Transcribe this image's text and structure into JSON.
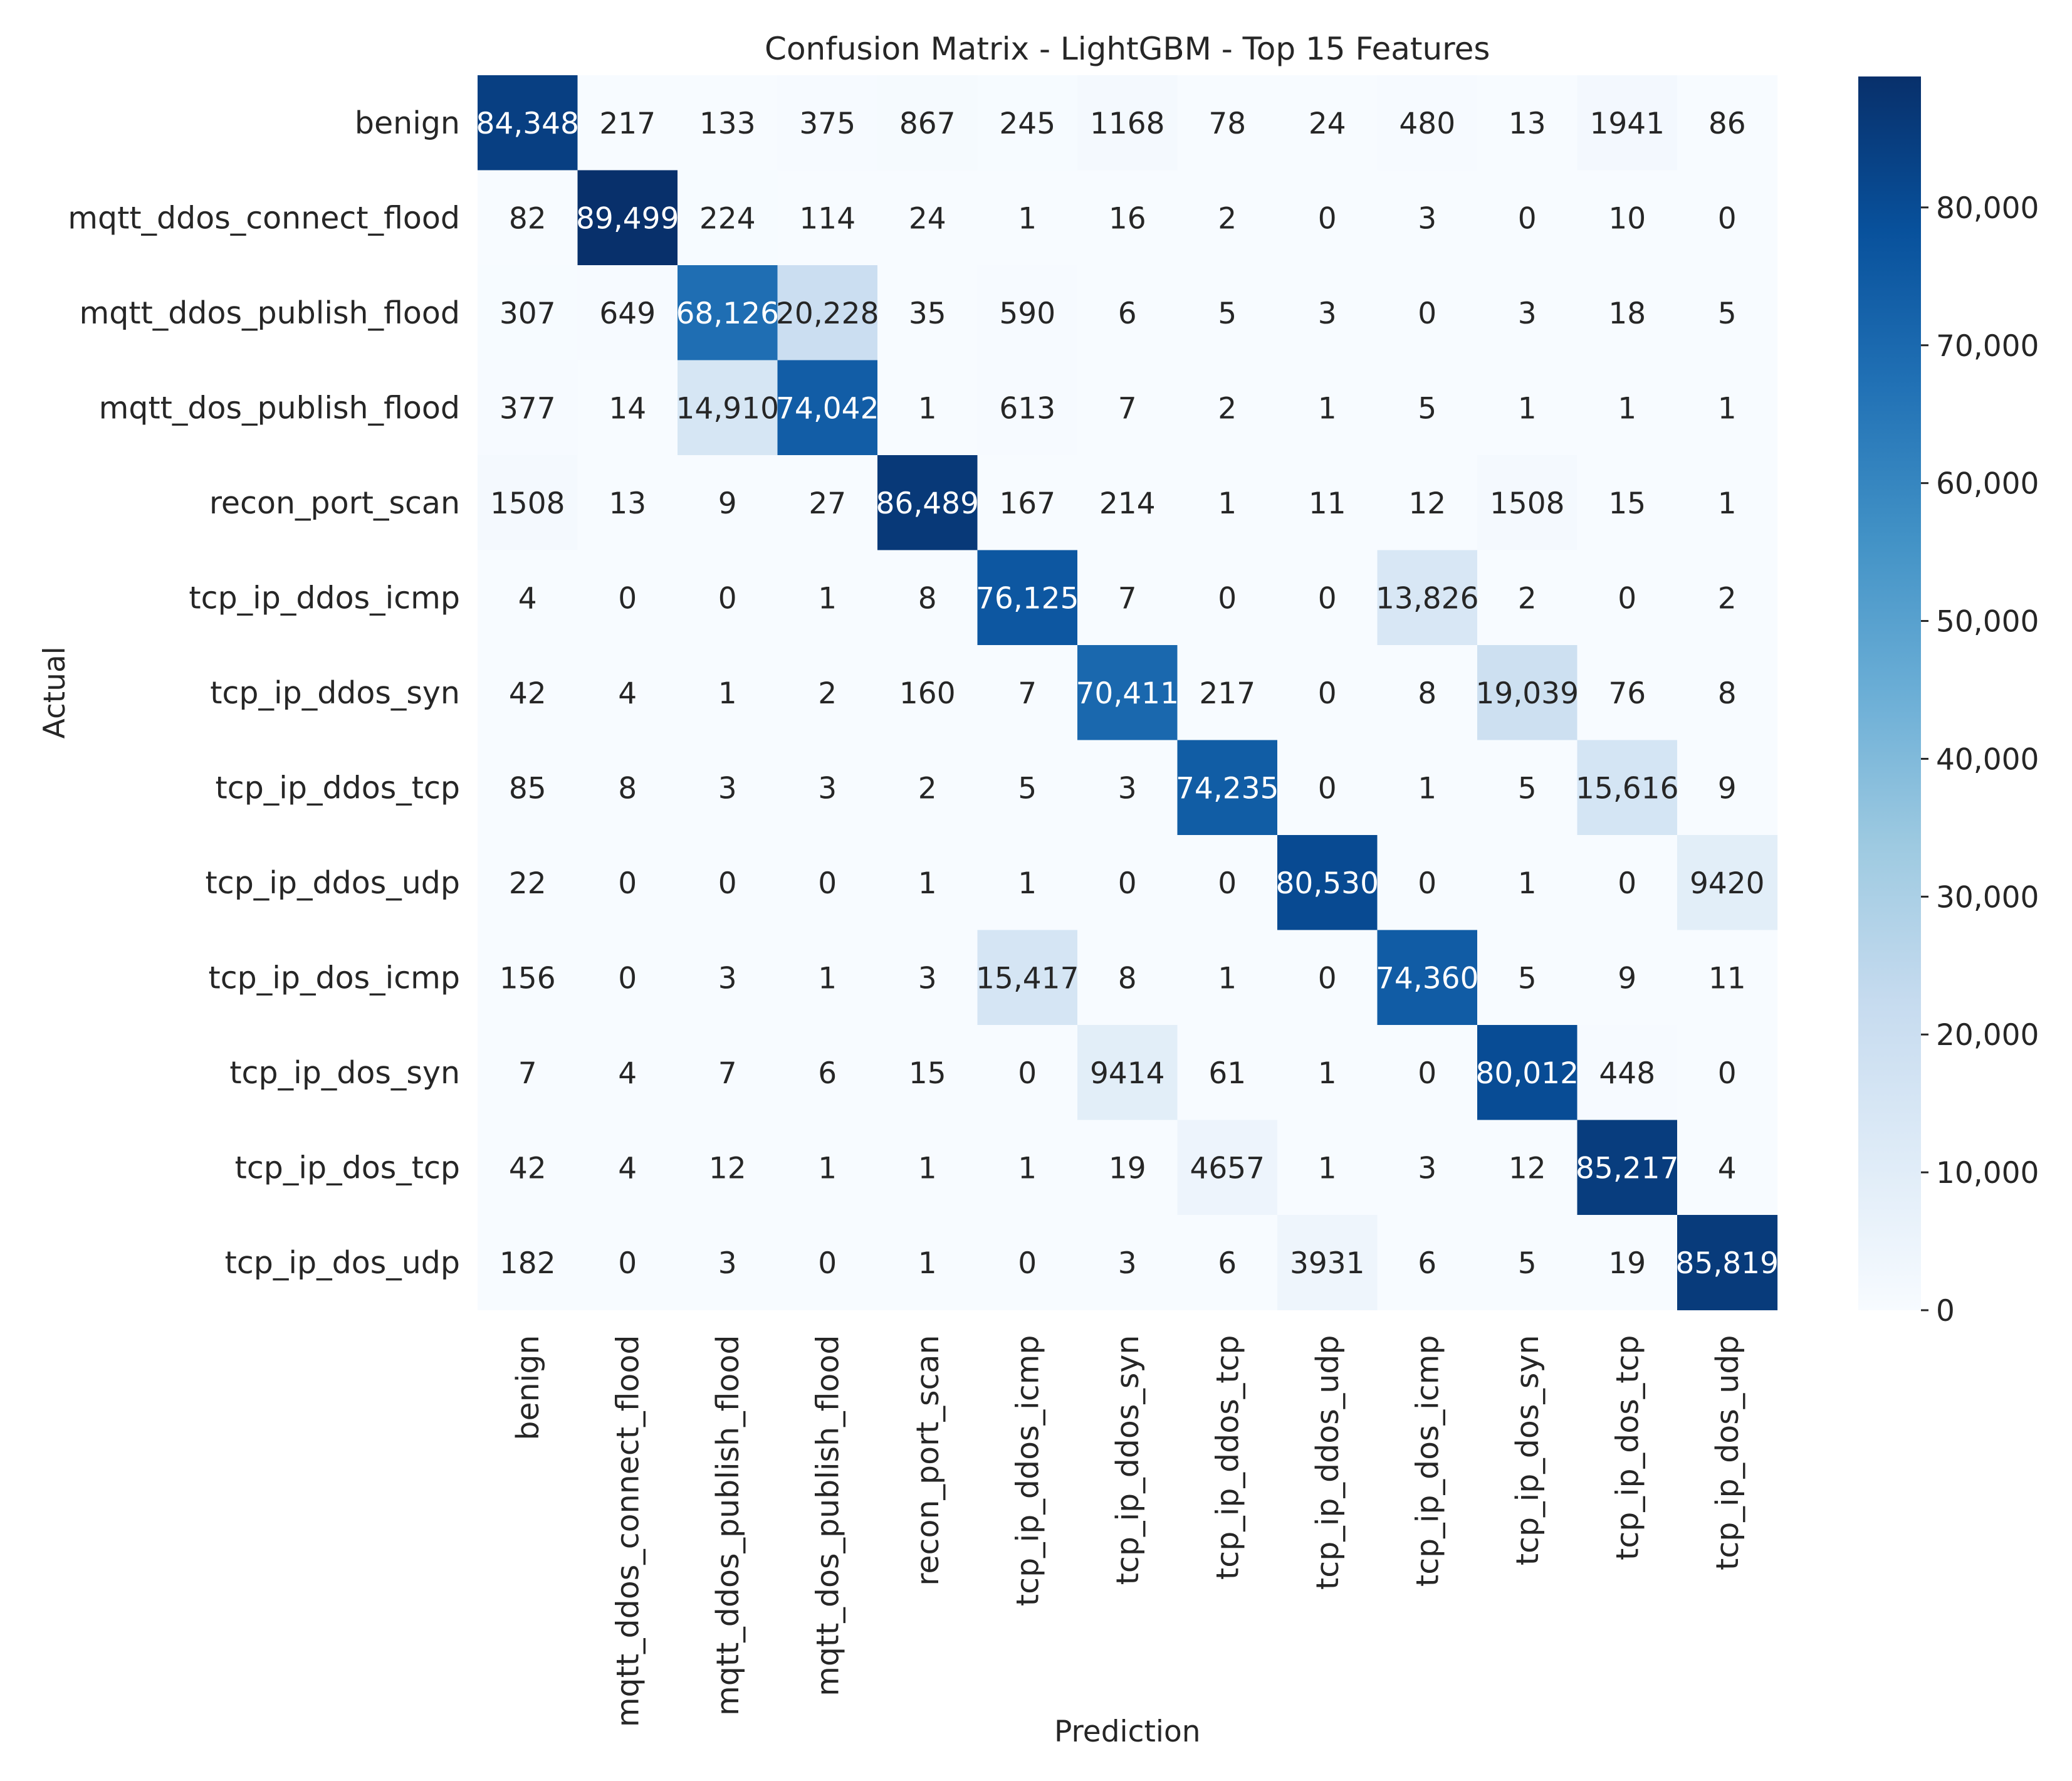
{
  "chart_data": {
    "type": "heatmap",
    "title": "Confusion Matrix - LightGBM - Top 15 Features",
    "xlabel": "Prediction",
    "ylabel": "Actual",
    "row_labels": [
      "benign",
      "mqtt_ddos_connect_flood",
      "mqtt_ddos_publish_flood",
      "mqtt_dos_publish_flood",
      "recon_port_scan",
      "tcp_ip_ddos_icmp",
      "tcp_ip_ddos_syn",
      "tcp_ip_ddos_tcp",
      "tcp_ip_ddos_udp",
      "tcp_ip_dos_icmp",
      "tcp_ip_dos_syn",
      "tcp_ip_dos_tcp",
      "tcp_ip_dos_udp"
    ],
    "col_labels": [
      "benign",
      "mqtt_ddos_connect_flood",
      "mqtt_ddos_publish_flood",
      "mqtt_dos_publish_flood",
      "recon_port_scan",
      "tcp_ip_ddos_icmp",
      "tcp_ip_ddos_syn",
      "tcp_ip_ddos_tcp",
      "tcp_ip_ddos_udp",
      "tcp_ip_dos_icmp",
      "tcp_ip_dos_syn",
      "tcp_ip_dos_tcp",
      "tcp_ip_dos_udp"
    ],
    "values": [
      [
        84348,
        217,
        133,
        375,
        867,
        245,
        1168,
        78,
        24,
        480,
        13,
        1941,
        86
      ],
      [
        82,
        89499,
        224,
        114,
        24,
        1,
        16,
        2,
        0,
        3,
        0,
        10,
        0
      ],
      [
        307,
        649,
        68126,
        20228,
        35,
        590,
        6,
        5,
        3,
        0,
        3,
        18,
        5
      ],
      [
        377,
        14,
        14910,
        74042,
        1,
        613,
        7,
        2,
        1,
        5,
        1,
        1,
        1
      ],
      [
        1508,
        13,
        9,
        27,
        86489,
        167,
        214,
        1,
        11,
        12,
        1508,
        15,
        1
      ],
      [
        4,
        0,
        0,
        1,
        8,
        76125,
        7,
        0,
        0,
        13826,
        2,
        0,
        2
      ],
      [
        42,
        4,
        1,
        2,
        160,
        7,
        70411,
        217,
        0,
        8,
        19039,
        76,
        8
      ],
      [
        85,
        8,
        3,
        3,
        2,
        5,
        3,
        74235,
        0,
        1,
        5,
        15616,
        9
      ],
      [
        22,
        0,
        0,
        0,
        1,
        1,
        0,
        0,
        80530,
        0,
        1,
        0,
        9420
      ],
      [
        156,
        0,
        3,
        1,
        3,
        15417,
        8,
        1,
        0,
        74360,
        5,
        9,
        11
      ],
      [
        7,
        4,
        7,
        6,
        15,
        0,
        9414,
        61,
        1,
        0,
        80012,
        448,
        0
      ],
      [
        42,
        4,
        12,
        1,
        1,
        1,
        19,
        4657,
        1,
        3,
        12,
        85217,
        4
      ],
      [
        182,
        0,
        3,
        0,
        1,
        0,
        3,
        6,
        3931,
        6,
        5,
        19,
        85819
      ]
    ],
    "cell_labels": [
      [
        "84,348",
        "217",
        "133",
        "375",
        "867",
        "245",
        "1168",
        "78",
        "24",
        "480",
        "13",
        "1941",
        "86"
      ],
      [
        "82",
        "89,499",
        "224",
        "114",
        "24",
        "1",
        "16",
        "2",
        "0",
        "3",
        "0",
        "10",
        "0"
      ],
      [
        "307",
        "649",
        "68,126",
        "20,228",
        "35",
        "590",
        "6",
        "5",
        "3",
        "0",
        "3",
        "18",
        "5"
      ],
      [
        "377",
        "14",
        "14,910",
        "74,042",
        "1",
        "613",
        "7",
        "2",
        "1",
        "5",
        "1",
        "1",
        "1"
      ],
      [
        "1508",
        "13",
        "9",
        "27",
        "86,489",
        "167",
        "214",
        "1",
        "11",
        "12",
        "1508",
        "15",
        "1"
      ],
      [
        "4",
        "0",
        "0",
        "1",
        "8",
        "76,125",
        "7",
        "0",
        "0",
        "13,826",
        "2",
        "0",
        "2"
      ],
      [
        "42",
        "4",
        "1",
        "2",
        "160",
        "7",
        "70,411",
        "217",
        "0",
        "8",
        "19,039",
        "76",
        "8"
      ],
      [
        "85",
        "8",
        "3",
        "3",
        "2",
        "5",
        "3",
        "74,235",
        "0",
        "1",
        "5",
        "15,616",
        "9"
      ],
      [
        "22",
        "0",
        "0",
        "0",
        "1",
        "1",
        "0",
        "0",
        "80,530",
        "0",
        "1",
        "0",
        "9420"
      ],
      [
        "156",
        "0",
        "3",
        "1",
        "3",
        "15,417",
        "8",
        "1",
        "0",
        "74,360",
        "5",
        "9",
        "11"
      ],
      [
        "7",
        "4",
        "7",
        "6",
        "15",
        "0",
        "9414",
        "61",
        "1",
        "0",
        "80,012",
        "448",
        "0"
      ],
      [
        "42",
        "4",
        "12",
        "1",
        "1",
        "1",
        "19",
        "4657",
        "1",
        "3",
        "12",
        "85,217",
        "4"
      ],
      [
        "182",
        "0",
        "3",
        "0",
        "1",
        "0",
        "3",
        "6",
        "3931",
        "6",
        "5",
        "19",
        "85,819"
      ]
    ],
    "colorbar": {
      "colormap": "Blues",
      "vmin": 0,
      "vmax": 89499,
      "ticks": [
        0,
        10000,
        20000,
        30000,
        40000,
        50000,
        60000,
        70000,
        80000
      ],
      "tick_labels": [
        "0",
        "10,000",
        "20,000",
        "30,000",
        "40,000",
        "50,000",
        "60,000",
        "70,000",
        "80,000"
      ]
    },
    "colors": {
      "low": "#f7fbff",
      "high": "#08306b",
      "text_dark": "#262626",
      "text_light": "#ffffff"
    }
  }
}
